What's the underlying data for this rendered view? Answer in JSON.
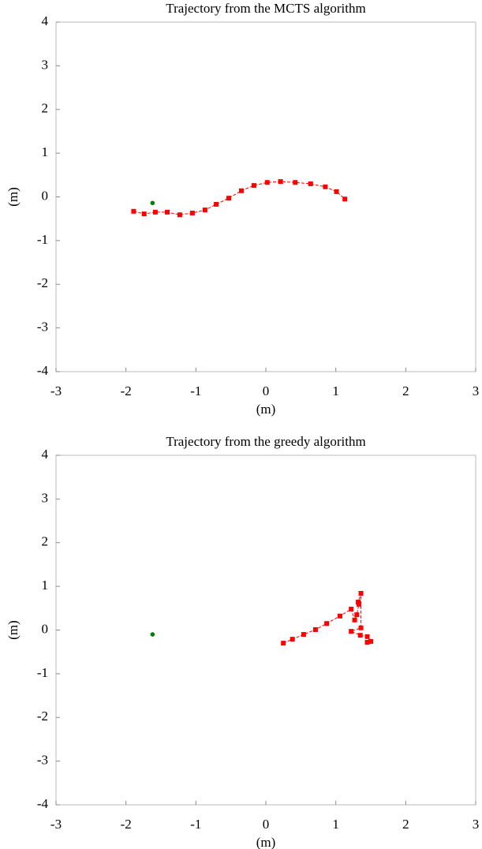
{
  "chart_data": [
    {
      "type": "line",
      "title": "Trajectory from the MCTS algorithm",
      "xlabel": "(m)",
      "ylabel": "(m)",
      "xlim": [
        -3,
        3
      ],
      "ylim": [
        -4,
        4
      ],
      "xticks": [
        -3,
        -2,
        -1,
        0,
        1,
        2,
        3
      ],
      "yticks": [
        -4,
        -3,
        -2,
        -1,
        0,
        1,
        2,
        3,
        4
      ],
      "series": [
        {
          "color": "#ff0000",
          "marker": "square",
          "x": [
            -1.89,
            -1.74,
            -1.58,
            -1.41,
            -1.23,
            -1.05,
            -0.87,
            -0.71,
            -0.53,
            -0.35,
            -0.17,
            0.02,
            0.21,
            0.42,
            0.64,
            0.85,
            1.01,
            1.13
          ],
          "values": [
            -0.33,
            -0.39,
            -0.35,
            -0.35,
            -0.41,
            -0.37,
            -0.3,
            -0.17,
            -0.03,
            0.14,
            0.26,
            0.33,
            0.35,
            0.33,
            0.3,
            0.23,
            0.12,
            -0.05
          ]
        },
        {
          "color": "#008000",
          "marker": "dot",
          "x": [
            -1.62
          ],
          "values": [
            -0.14
          ]
        }
      ]
    },
    {
      "type": "line",
      "title": "Trajectory from the greedy algorithm",
      "xlabel": "(m)",
      "ylabel": "(m)",
      "xlim": [
        -3,
        3
      ],
      "ylim": [
        -4,
        4
      ],
      "xticks": [
        -3,
        -2,
        -1,
        0,
        1,
        2,
        3
      ],
      "yticks": [
        -4,
        -3,
        -2,
        -1,
        0,
        1,
        2,
        3,
        4
      ],
      "series": [
        {
          "color": "#ff0000",
          "marker": "square",
          "x": [
            0.25,
            0.38,
            0.54,
            0.71,
            0.87,
            1.06,
            1.22,
            1.27,
            1.3,
            1.33,
            1.32,
            1.36,
            1.36,
            1.22,
            1.35,
            1.45,
            1.5,
            1.45
          ],
          "values": [
            -0.3,
            -0.21,
            -0.1,
            0.01,
            0.15,
            0.32,
            0.48,
            0.23,
            0.35,
            0.59,
            0.64,
            0.84,
            0.05,
            -0.03,
            -0.12,
            -0.15,
            -0.26,
            -0.28
          ]
        },
        {
          "color": "#008000",
          "marker": "dot",
          "x": [
            -1.62
          ],
          "values": [
            -0.1
          ]
        }
      ]
    }
  ]
}
